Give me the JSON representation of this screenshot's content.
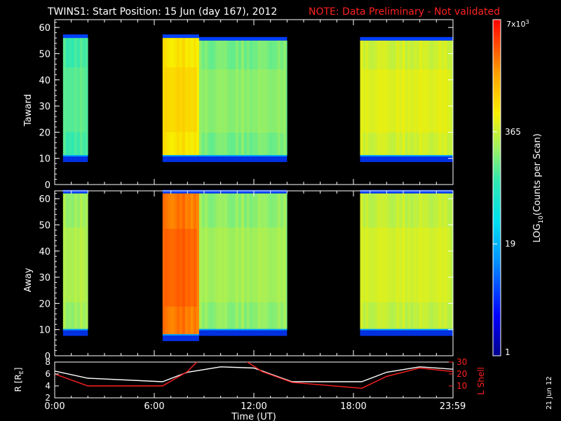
{
  "title": {
    "main": "TWINS1: Start Position: 15 Jun (day 167), 2012",
    "note": "NOTE: Data Preliminary - Not validated",
    "note_color": "#ff2020"
  },
  "date_stamp": "21 Jun 12",
  "colorbar": {
    "label_prefix": "LOG",
    "label_sub": "10",
    "label_suffix": "(Counts per Scan)",
    "top_label": "7x10",
    "top_label_exp": "3",
    "ticks": [
      "365",
      "19",
      "1"
    ],
    "tick_values": [
      7000,
      365,
      19,
      1
    ],
    "scale": "log",
    "range": [
      1,
      7000
    ]
  },
  "chart_data": [
    {
      "type": "heatmap",
      "panel": "toward",
      "ylabel": "Taward",
      "ylim": [
        0,
        63
      ],
      "yticks": [
        "0",
        "10",
        "20",
        "30",
        "40",
        "50",
        "60"
      ],
      "xlim_hours": [
        0,
        24
      ],
      "segments": [
        {
          "start_h": 0.5,
          "end_h": 2.0,
          "low": 11,
          "high": 56,
          "level": 120
        },
        {
          "start_h": 6.5,
          "end_h": 8.7,
          "low": 11,
          "high": 56,
          "level": 700
        },
        {
          "start_h": 8.7,
          "end_h": 14.0,
          "low": 11,
          "high": 55,
          "level": 180
        },
        {
          "start_h": 18.4,
          "end_h": 24.0,
          "low": 11,
          "high": 55,
          "level": 400
        }
      ]
    },
    {
      "type": "heatmap",
      "panel": "away",
      "ylabel": "Away",
      "ylim": [
        0,
        63
      ],
      "yticks": [
        "0",
        "10",
        "20",
        "30",
        "40",
        "50",
        "60"
      ],
      "xlim_hours": [
        0,
        24
      ],
      "segments": [
        {
          "start_h": 0.5,
          "end_h": 2.0,
          "low": 10,
          "high": 62,
          "level": 250
        },
        {
          "start_h": 6.5,
          "end_h": 8.7,
          "low": 8,
          "high": 62,
          "level": 2500
        },
        {
          "start_h": 8.7,
          "end_h": 14.0,
          "low": 10,
          "high": 62,
          "level": 220
        },
        {
          "start_h": 18.4,
          "end_h": 24.0,
          "low": 10,
          "high": 62,
          "level": 350
        }
      ]
    },
    {
      "type": "line",
      "panel": "orbit",
      "ylabel_left": "R [R",
      "ylabel_left_sub": "E",
      "ylabel_left_end": "]",
      "ylabel_right": "L Shell",
      "yticks_left": [
        "2",
        "4",
        "6",
        "8"
      ],
      "yticks_right": [
        "10",
        "20",
        "30"
      ],
      "ylim_left": [
        2,
        8
      ],
      "ylim_right": [
        0,
        30
      ],
      "xlabel": "Time (UT)",
      "xticks": [
        "0:00",
        "6:00",
        "12:00",
        "18:00",
        "23:59"
      ],
      "xtick_hours": [
        0,
        6,
        12,
        18,
        23.98
      ],
      "series": [
        {
          "color": "#ffffff",
          "axis": "left",
          "x": [
            0,
            2,
            6.5,
            8,
            10,
            12,
            14.3,
            18.5,
            20,
            22,
            24
          ],
          "y": [
            6.5,
            5.3,
            4.7,
            6.3,
            7.2,
            7.0,
            4.7,
            4.7,
            6.3,
            7.2,
            6.8
          ]
        },
        {
          "color": "#ff2020",
          "axis": "right",
          "x": [
            0,
            2,
            6.5,
            8,
            8.7,
            11.4,
            12.5,
            14.3,
            18.5,
            20,
            22,
            24
          ],
          "y": [
            20,
            10,
            10,
            22,
            32,
            32,
            22,
            13,
            8,
            18,
            25,
            22
          ]
        }
      ]
    }
  ]
}
